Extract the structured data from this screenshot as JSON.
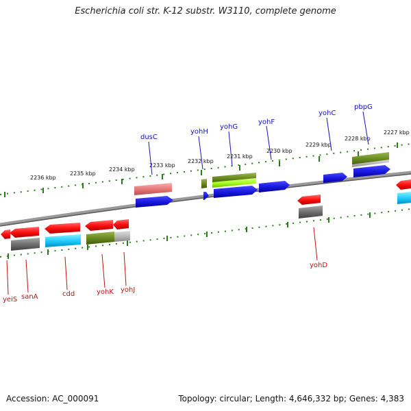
{
  "title": "Escherichia coli str. K-12 substr. W3110, complete genome",
  "footer": {
    "accession": "Accession: AC_000091",
    "summary": "Topology: circular; Length: 4,646,332 bp; Genes: 4,383"
  },
  "colors": {
    "backbone": "#808080",
    "tick": "#2a7a1a",
    "label_top": "#1010c0",
    "label_bottom": "#c01010",
    "forward_cds": "#1a1ae0",
    "reverse_cds": "#ff1010",
    "pink_feature": "#e87878",
    "olive_feature": "#6a8a20",
    "lime_feature": "#aaff22",
    "cyan_feature": "#22ccff",
    "gray_feature": "#707070",
    "lightgray_feature": "#b8b8b8"
  },
  "scale": {
    "kbp_labels": [
      "2236 kbp",
      "2235 kbp",
      "2234 kbp",
      "2233 kbp",
      "2232 kbp",
      "2231 kbp",
      "2230 kbp",
      "2229 kbp",
      "2228 kbp",
      "2227 kbp"
    ]
  },
  "genes_top": [
    "dusC",
    "yohH",
    "yohG",
    "yohF",
    "yohC",
    "pbpG"
  ],
  "genes_bottom": [
    "yeiS",
    "sanA",
    "cdd",
    "yohK",
    "yohJ",
    "yohD"
  ]
}
